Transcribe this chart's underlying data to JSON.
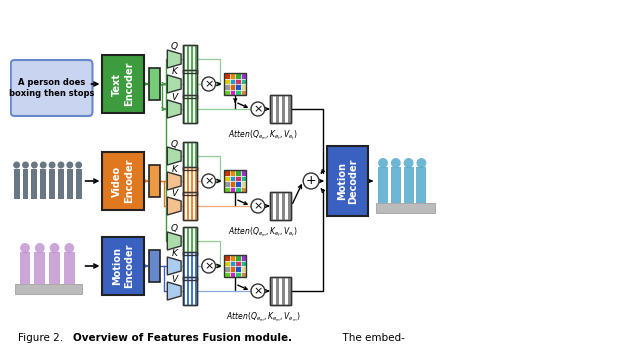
{
  "background_color": "#ffffff",
  "text_encoder_color": "#3d9c3d",
  "video_encoder_color": "#e07820",
  "motion_encoder_color": "#3a60c0",
  "motion_decoder_color": "#3a60c0",
  "input_box_color": "#c8d4f0",
  "green": "#3d9c3d",
  "orange": "#e07820",
  "blue": "#3a60c0",
  "light_green": "#90cc90",
  "light_orange": "#f0a870",
  "light_blue": "#88aadd",
  "gray_stripe": "#888888",
  "caption_normal": "Figure 2.  ",
  "caption_bold": "Overview of Features Fusion module.",
  "caption_end": "  The embed-"
}
